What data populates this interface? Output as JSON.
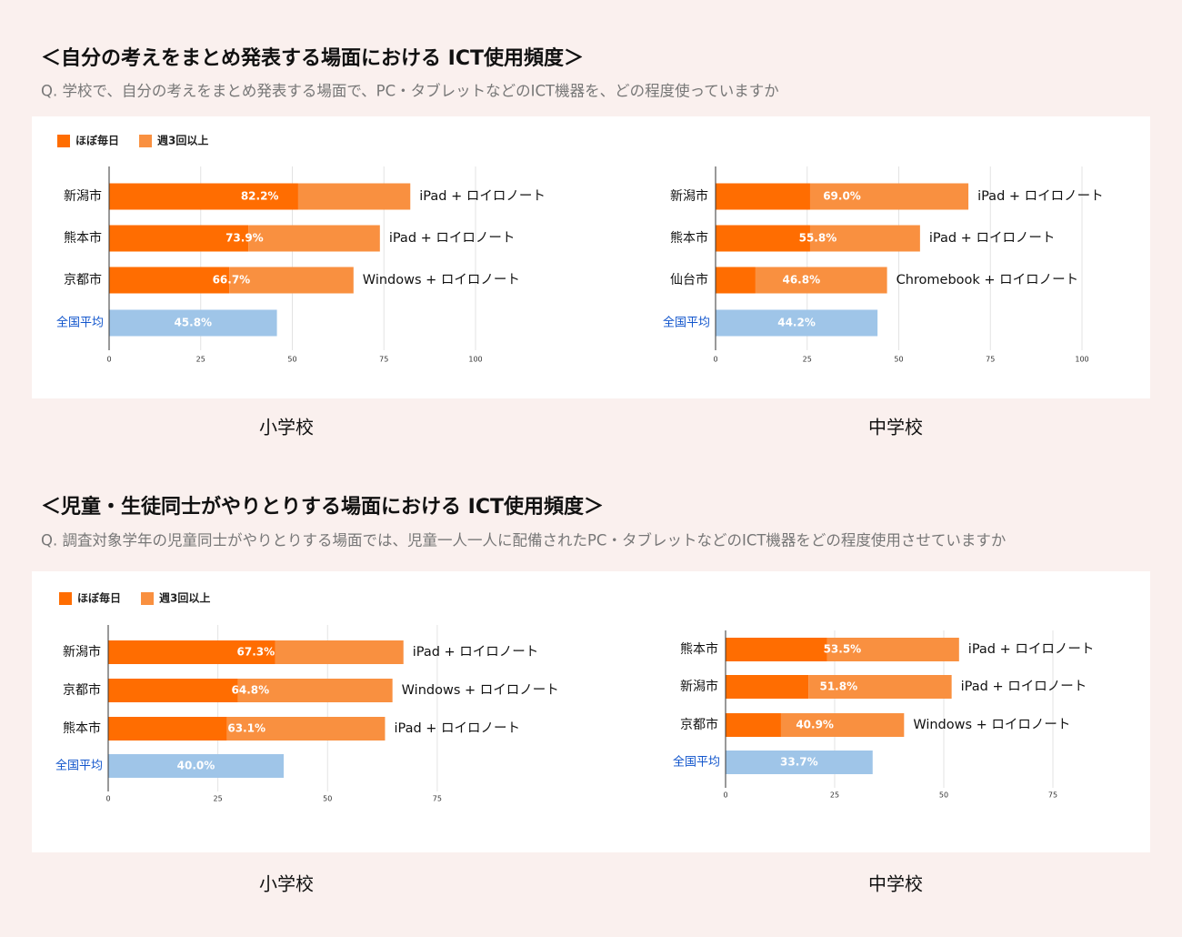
{
  "sections": [
    {
      "title": "＜自分の考えをまとめ発表する場面における ICT使用頻度＞",
      "question": "Q. 学校で、自分の考えをまとめ発表する場面で、PC・タブレットなどのICT機器を、どの程度使っていますか"
    },
    {
      "title": "＜児童・生徒同士がやりとりする場面における ICT使用頻度＞",
      "question": "Q. 調査対象学年の児童同士がやりとりする場面では、児童一人一人に配備されたPC・タブレットなどのICT機器をどの程度使用させていますか"
    }
  ],
  "chart_data": [
    {
      "type": "bar",
      "caption": "小学校",
      "categories": [
        "新潟市",
        "熊本市",
        "京都市"
      ],
      "series": [
        {
          "name": "ほぼ毎日",
          "color": "#ff6d01",
          "values": [
            51.6,
            38.0,
            32.8
          ]
        },
        {
          "name": "週3回以上",
          "color": "#f99040",
          "values": [
            30.6,
            35.9,
            33.9
          ]
        }
      ],
      "total_labels": [
        "82.2%",
        "73.9%",
        "66.7%"
      ],
      "annotations": [
        "iPad + ロイロノート",
        "iPad + ロイロノート",
        "Windows + ロイロノート"
      ],
      "average": {
        "label": "全国平均",
        "value": 45.8,
        "value_label": "45.8%",
        "color": "#9fc5e8"
      },
      "xlim": [
        0,
        100
      ],
      "xticks": [
        0,
        25,
        50,
        75,
        100
      ],
      "grid": true
    },
    {
      "type": "bar",
      "caption": "中学校",
      "categories": [
        "新潟市",
        "熊本市",
        "仙台市"
      ],
      "series": [
        {
          "color": "#ff6d01",
          "values": [
            25.8,
            25.8,
            10.9
          ]
        },
        {
          "color": "#f99040",
          "values": [
            43.2,
            30.0,
            35.9
          ]
        }
      ],
      "total_labels": [
        "69.0%",
        "55.8%",
        "46.8%"
      ],
      "annotations": [
        "iPad + ロイロノート",
        "iPad + ロイロノート",
        "Chromebook + ロイロノート"
      ],
      "average": {
        "label": "全国平均",
        "value": 44.2,
        "value_label": "44.2%",
        "color": "#9fc5e8"
      },
      "xlim": [
        0,
        100
      ],
      "xticks": [
        0,
        25,
        50,
        75,
        100
      ],
      "grid": true
    },
    {
      "type": "bar",
      "caption": "小学校",
      "categories": [
        "新潟市",
        "京都市",
        "熊本市"
      ],
      "series": [
        {
          "name": "ほぼ毎日",
          "color": "#ff6d01",
          "values": [
            38.1,
            29.6,
            27.1
          ]
        },
        {
          "name": "週3回以上",
          "color": "#f99040",
          "values": [
            29.2,
            35.2,
            36.0
          ]
        }
      ],
      "total_labels": [
        "67.3%",
        "64.8%",
        "63.1%"
      ],
      "annotations": [
        "iPad + ロイロノート",
        "Windows + ロイロノート",
        "iPad + ロイロノート"
      ],
      "average": {
        "label": "全国平均",
        "value": 40.0,
        "value_label": "40.0%",
        "color": "#9fc5e8"
      },
      "xlim": [
        0,
        80
      ],
      "xticks": [
        0,
        25,
        50,
        75
      ],
      "grid": true
    },
    {
      "type": "bar",
      "caption": "中学校",
      "categories": [
        "熊本市",
        "新潟市",
        "京都市"
      ],
      "series": [
        {
          "color": "#ff6d01",
          "values": [
            23.3,
            19.0,
            12.7
          ]
        },
        {
          "color": "#f99040",
          "values": [
            30.2,
            32.8,
            28.2
          ]
        }
      ],
      "total_labels": [
        "53.5%",
        "51.8%",
        "40.9%"
      ],
      "annotations": [
        "iPad + ロイロノート",
        "iPad + ロイロノート",
        "Windows + ロイロノート"
      ],
      "average": {
        "label": "全国平均",
        "value": 33.7,
        "value_label": "33.7%",
        "color": "#9fc5e8"
      },
      "xlim": [
        0,
        80
      ],
      "xticks": [
        0,
        25,
        50,
        75
      ],
      "grid": true
    }
  ]
}
